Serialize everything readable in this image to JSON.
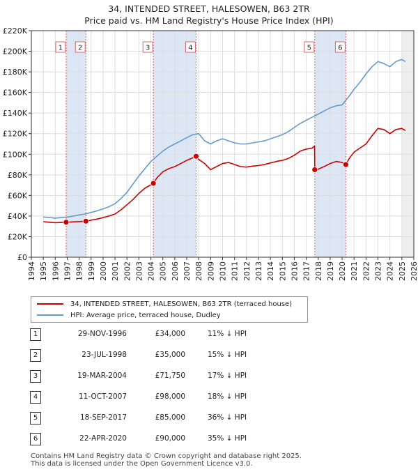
{
  "title_line1": "34, INTENDED STREET, HALESOWEN, B63 2TR",
  "title_line2": "Price paid vs. HM Land Registry's House Price Index (HPI)",
  "colors": {
    "price_line": "#cc0000",
    "hpi_line": "#6699cc",
    "shade": "#dde6f5",
    "vline": "#dd6666",
    "grid": "#dddddd",
    "axis": "#333333"
  },
  "chart_data": {
    "type": "line",
    "title": "Price paid vs. HM Land Registry's House Price Index (HPI)",
    "xlim": [
      1994,
      2026
    ],
    "ylim": [
      0,
      220000
    ],
    "x_ticks": [
      1994,
      1995,
      1996,
      1997,
      1998,
      1999,
      2000,
      2001,
      2002,
      2003,
      2004,
      2005,
      2006,
      2007,
      2008,
      2009,
      2010,
      2011,
      2012,
      2013,
      2014,
      2015,
      2016,
      2017,
      2018,
      2019,
      2020,
      2021,
      2022,
      2023,
      2024,
      2025,
      2026
    ],
    "y_ticks": [
      0,
      20000,
      40000,
      60000,
      80000,
      100000,
      120000,
      140000,
      160000,
      180000,
      200000,
      220000
    ],
    "y_tick_labels": [
      "£0",
      "£20K",
      "£40K",
      "£60K",
      "£80K",
      "£100K",
      "£120K",
      "£140K",
      "£160K",
      "£180K",
      "£200K",
      "£220K"
    ],
    "shaded_ranges": [
      [
        1996.91,
        1998.56
      ],
      [
        2004.21,
        2007.78
      ],
      [
        2017.71,
        2020.31
      ]
    ],
    "series": [
      {
        "name": "34, INTENDED STREET, HALESOWEN, B63 2TR (terraced house)",
        "color": "#cc0000",
        "x": [
          1995.0,
          1995.5,
          1996.0,
          1996.5,
          1996.91,
          1997.5,
          1998.0,
          1998.56,
          1999.0,
          1999.5,
          2000.0,
          2000.5,
          2001.0,
          2001.5,
          2002.0,
          2002.5,
          2003.0,
          2003.5,
          2004.21,
          2004.5,
          2005.0,
          2005.5,
          2006.0,
          2006.5,
          2007.0,
          2007.5,
          2007.78,
          2008.0,
          2008.5,
          2009.0,
          2009.5,
          2010.0,
          2010.5,
          2011.0,
          2011.5,
          2012.0,
          2012.5,
          2013.0,
          2013.5,
          2014.0,
          2014.5,
          2015.0,
          2015.5,
          2016.0,
          2016.5,
          2017.0,
          2017.5,
          2017.7,
          2017.71,
          2018.0,
          2018.5,
          2019.0,
          2019.5,
          2020.0,
          2020.31,
          2020.6,
          2021.0,
          2021.5,
          2022.0,
          2022.5,
          2023.0,
          2023.5,
          2024.0,
          2024.5,
          2025.0,
          2025.3
        ],
        "values": [
          34500,
          34000,
          33500,
          33800,
          34000,
          34300,
          34600,
          35000,
          36000,
          37000,
          38500,
          40000,
          42000,
          46000,
          51000,
          56000,
          62000,
          67000,
          71750,
          77000,
          83000,
          86000,
          88000,
          91000,
          94000,
          96500,
          98000,
          95000,
          91000,
          85000,
          88000,
          91000,
          92000,
          90000,
          88000,
          87500,
          88500,
          89000,
          90000,
          91500,
          93000,
          94000,
          96000,
          99000,
          103000,
          105000,
          106000,
          108000,
          85000,
          85500,
          88000,
          91000,
          93000,
          92000,
          90000,
          96000,
          102000,
          106000,
          110000,
          118000,
          125000,
          124000,
          120000,
          124000,
          125000,
          123000
        ]
      },
      {
        "name": "HPI: Average price, terraced house, Dudley",
        "color": "#6699cc",
        "x": [
          1995.0,
          1995.5,
          1996.0,
          1996.5,
          1997.0,
          1997.5,
          1998.0,
          1998.5,
          1999.0,
          1999.5,
          2000.0,
          2000.5,
          2001.0,
          2001.5,
          2002.0,
          2002.5,
          2003.0,
          2003.5,
          2004.0,
          2004.5,
          2005.0,
          2005.5,
          2006.0,
          2006.5,
          2007.0,
          2007.5,
          2008.0,
          2008.5,
          2009.0,
          2009.5,
          2010.0,
          2010.5,
          2011.0,
          2011.5,
          2012.0,
          2012.5,
          2013.0,
          2013.5,
          2014.0,
          2014.5,
          2015.0,
          2015.5,
          2016.0,
          2016.5,
          2017.0,
          2017.5,
          2018.0,
          2018.5,
          2019.0,
          2019.5,
          2020.0,
          2020.5,
          2021.0,
          2021.5,
          2022.0,
          2022.5,
          2023.0,
          2023.5,
          2024.0,
          2024.5,
          2025.0,
          2025.3
        ],
        "values": [
          39000,
          38500,
          38000,
          38500,
          39000,
          40000,
          41000,
          42000,
          43500,
          45000,
          47000,
          49000,
          52000,
          57000,
          63000,
          71000,
          79000,
          86000,
          93000,
          98000,
          103000,
          107000,
          110000,
          113000,
          116000,
          119000,
          120000,
          113000,
          110000,
          113000,
          115000,
          113000,
          111000,
          110000,
          110000,
          111000,
          112000,
          113000,
          115000,
          117000,
          119000,
          122000,
          126000,
          130000,
          133000,
          136000,
          139000,
          142000,
          145000,
          147000,
          148000,
          155000,
          163000,
          170000,
          178000,
          185000,
          190000,
          188000,
          185000,
          190000,
          192000,
          190000
        ]
      }
    ],
    "sale_markers": [
      {
        "label": "1",
        "x": 1996.91,
        "value": 34000
      },
      {
        "label": "2",
        "x": 1998.56,
        "value": 35000
      },
      {
        "label": "3",
        "x": 2004.21,
        "value": 71750
      },
      {
        "label": "4",
        "x": 2007.78,
        "value": 98000
      },
      {
        "label": "5",
        "x": 2017.71,
        "value": 85000
      },
      {
        "label": "6",
        "x": 2020.31,
        "value": 90000
      }
    ]
  },
  "legend": {
    "price_label": "34, INTENDED STREET, HALESOWEN, B63 2TR (terraced house)",
    "hpi_label": "HPI: Average price, terraced house, Dudley"
  },
  "sales": [
    {
      "num": "1",
      "date": "29-NOV-1996",
      "price": "£34,000",
      "hpi": "11% ↓ HPI"
    },
    {
      "num": "2",
      "date": "23-JUL-1998",
      "price": "£35,000",
      "hpi": "15% ↓ HPI"
    },
    {
      "num": "3",
      "date": "19-MAR-2004",
      "price": "£71,750",
      "hpi": "17% ↓ HPI"
    },
    {
      "num": "4",
      "date": "11-OCT-2007",
      "price": "£98,000",
      "hpi": "18% ↓ HPI"
    },
    {
      "num": "5",
      "date": "18-SEP-2017",
      "price": "£85,000",
      "hpi": "36% ↓ HPI"
    },
    {
      "num": "6",
      "date": "22-APR-2020",
      "price": "£90,000",
      "hpi": "35% ↓ HPI"
    }
  ],
  "footer_line1": "Contains HM Land Registry data © Crown copyright and database right 2025.",
  "footer_line2": "This data is licensed under the Open Government Licence v3.0."
}
